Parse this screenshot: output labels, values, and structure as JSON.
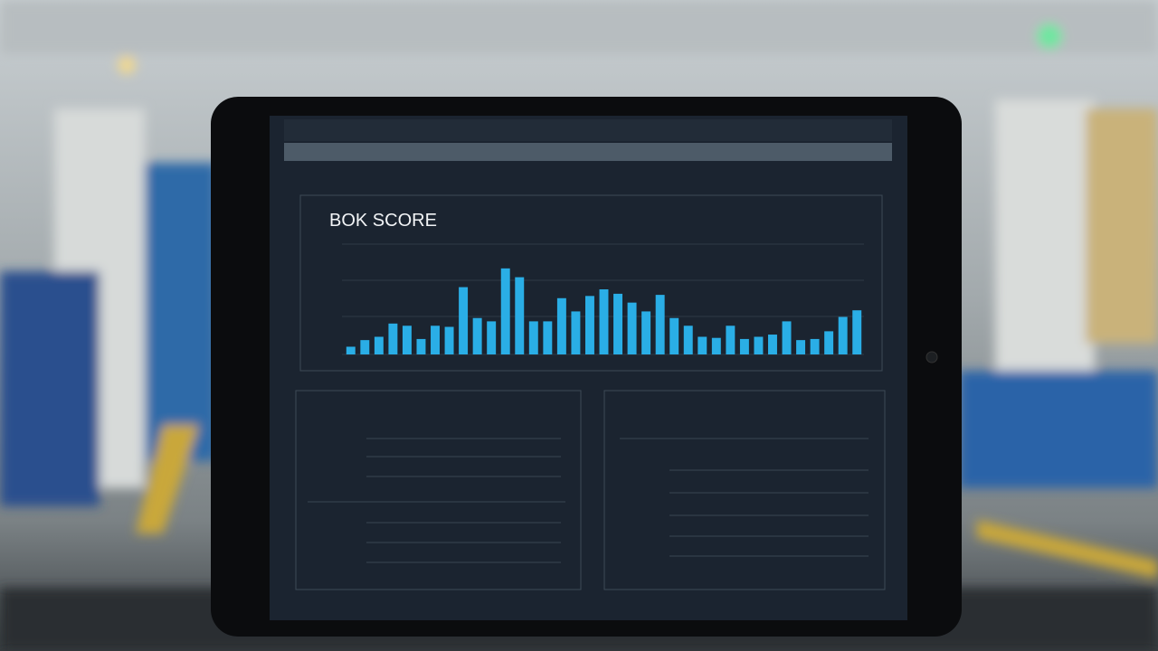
{
  "chart": {
    "type": "bar",
    "title": "BOK SCORE",
    "values": [
      7,
      13,
      16,
      28,
      26,
      14,
      26,
      25,
      61,
      33,
      30,
      78,
      70,
      30,
      30,
      51,
      39,
      53,
      59,
      55,
      47,
      39,
      54,
      33,
      26,
      16,
      15,
      26,
      14,
      16,
      18,
      30,
      13,
      14,
      21,
      34,
      40
    ],
    "ylim": [
      0,
      100
    ],
    "color": "#2aaee6"
  }
}
